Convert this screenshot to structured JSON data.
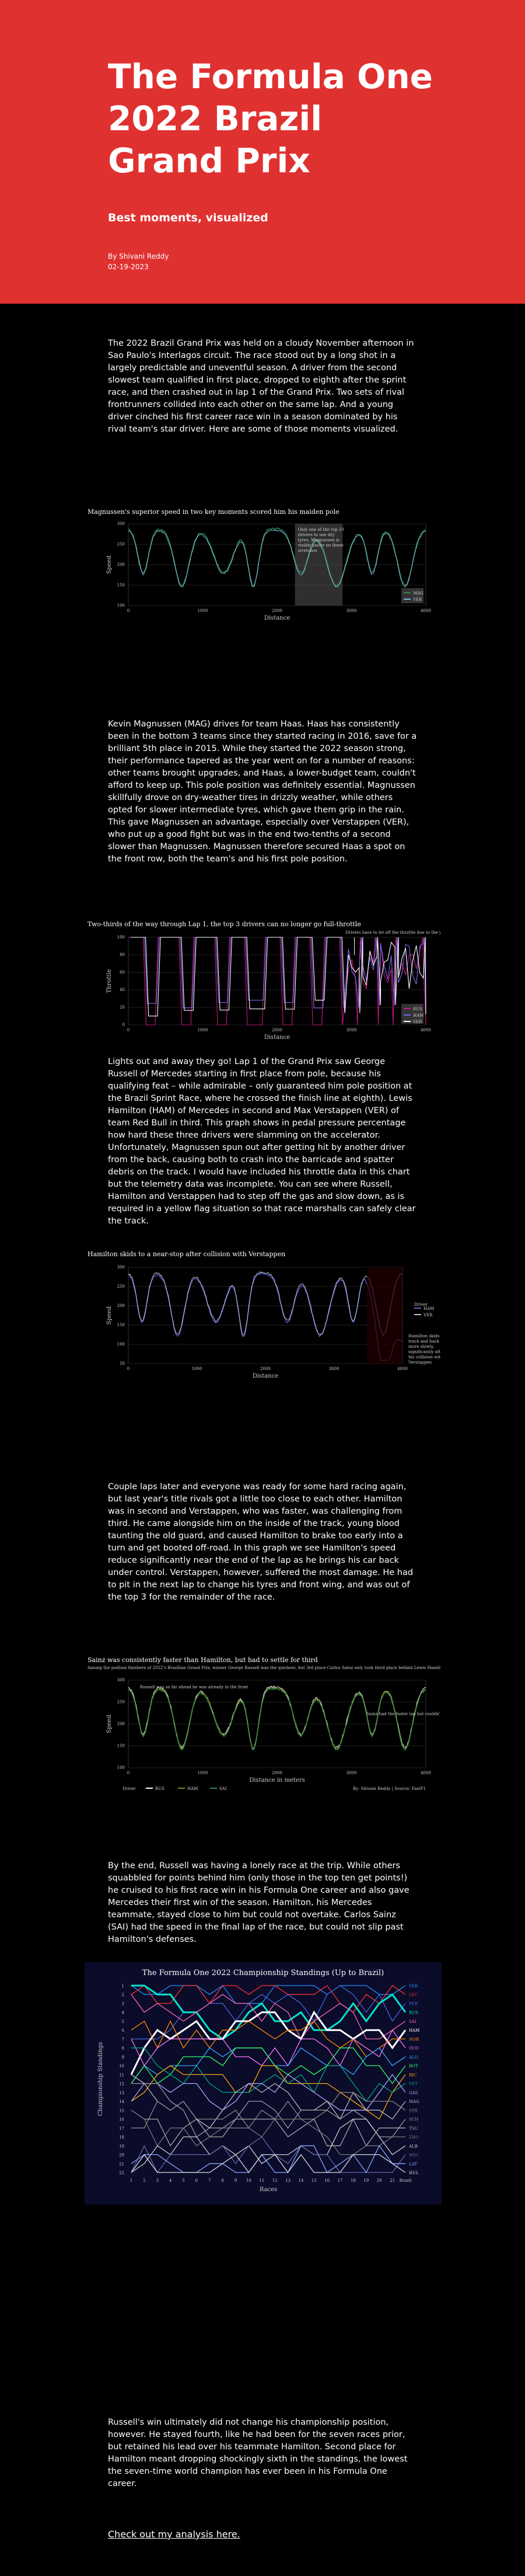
{
  "header": {
    "title": "The Formula One 2022 Brazil Grand Prix",
    "subtitle": "Best moments, visualized",
    "author": "By Shivani Reddy",
    "date": "02-19-2023"
  },
  "paragraphs": [
    "The 2022 Brazil Grand Prix was held on a cloudy November afternoon in Sao Paulo's Interlagos circuit. The race stood out by a long shot in a largely predictable and uneventful season. A driver from the second slowest team qualified in first place, dropped to eighth after the sprint race, and then crashed out in lap 1 of the Grand Prix. Two sets of rival frontrunners collided into each other on the same lap. And a young driver cinched his first career race win in a season dominated by his rival team's star driver. Here are some of those moments visualized.",
    "Kevin Magnussen (MAG) drives for team Haas. Haas has consistently been in the bottom 3 teams since they started racing in 2016, save for a brilliant 5th place in 2015. While they started the 2022 season strong, their performance tapered as the year went on for a number of reasons: other teams brought upgrades, and Haas, a lower-budget team, couldn't afford to keep up. This pole position was definitely essential. Magnussen skillfully drove on dry-weather tires in drizzly weather, while others opted for slower intermediate tyres, which gave them grip in the rain. This gave Magnussen an advantage, especially over Verstappen (VER), who put up a good fight but was in the end two-tenths of a second slower than Magnussen. Magnussen therefore secured Haas a spot on the front row, both the team's and his first pole position.",
    "Lights out and away they go! Lap 1 of the Grand Prix saw George Russell of Mercedes starting in first place from pole, because his qualifying feat – while admirable – only guaranteed him pole position at the Brazil Sprint Race, where he crossed the finish line at eighth). Lewis Hamilton (HAM) of Mercedes in second and Max Verstappen (VER) of team Red Bull in third. This graph shows in pedal pressure percentage how hard these three drivers were slamming on the accelerator. Unfortunately, Magnussen spun out after getting hit by another driver from the back, causing both to crash into the barricade and spatter debris on the track. I would have included his throttle data in this chart but the telemetry data was incomplete. You can see where Russell, Hamilton and Verstappen had to step off the gas and slow down, as is required in a yellow flag situation so that race marshalls can safely clear the track.",
    "Couple laps later and everyone was ready for some hard racing again, but last year's title rivals got a little too close to each other. Hamilton was in second and Verstappen, who was faster, was challenging from third. He came alongside him on the inside of the track, young blood taunting the old guard, and caused Hamilton to brake too early into a turn and get booted off-road. In this graph we see Hamilton's speed reduce significantly near the end of the lap as he brings his car back under control. Verstappen, however, suffered the most damage. He had to pit in the next lap to change his tyres and front wing, and was out of the top 3 for the remainder of the race.",
    "By the end, Russell was having a lonely race at the trip. While others squabbled for points behind him (only those in the top ten get points!) he cruised to his first race win in his Formula One career and also gave Mercedes their first win of the season. Hamilton, his Mercedes teammate, stayed close to him but could not overtake. Carlos Sainz (SAI) had the speed in the final lap of the race, but could not slip past Hamilton's defenses.",
    "Russell's win ultimately did not change his championship position, however. He stayed fourth, like he had been for the seven races prior, but retained his lead over his teammate Hamilton. Second place for Hamilton meant dropping shockingly sixth in the standings, the lowest the seven-time world champion has ever been in his Formula One career."
  ],
  "link_text": "Check out my analysis here.",
  "charts": {
    "speed": {
      "title": "Magnussen's superior speed in two key moments scored him his maiden pole",
      "ylabel": "Speed",
      "xlabel": "Distance",
      "yticks": [
        "300",
        "250",
        "200",
        "150",
        "100"
      ],
      "xticks": [
        "0",
        "1000",
        "2000",
        "3000",
        "4000"
      ],
      "annotation": "Only one of the top 10 drivers to use dry tyres, Magnussen is visibly faster on these stretches",
      "legend": [
        "MAG",
        "VER"
      ],
      "colors": [
        "#2e8b57",
        "#7fb5e0"
      ]
    },
    "throttle": {
      "title": "Two-thirds of the way through Lap 1, the top 3 drivers can no longer go full-throttle",
      "ylabel": "Throttle",
      "xlabel": "Distance",
      "yticks": [
        "100",
        "80",
        "60",
        "40",
        "20",
        "0"
      ],
      "xticks": [
        "0",
        "1000",
        "2000",
        "3000",
        "4000"
      ],
      "annotation": "Drivers have to let off the throttle due to the yellow flag and crash",
      "legend": [
        "RUS",
        "HAM",
        "VER"
      ],
      "colors": [
        "#c71585",
        "#7b68ee",
        "#ffffff"
      ]
    },
    "collision": {
      "title": "Hamilton skids to a near-stop after collision with Verstappen",
      "ylabel": "Speed",
      "xlabel": "Distance",
      "yticks": [
        "300",
        "250",
        "200",
        "150",
        "100",
        "50"
      ],
      "xticks": [
        "0",
        "1000",
        "2000",
        "3000",
        "4000"
      ],
      "annotation": "Hamilton skids off track and back on more slowly, significantly after his collision with Verstappen",
      "legend_title": "Driver",
      "legend": [
        "HAM",
        "VER"
      ],
      "colors": [
        "#6a5acd",
        "#b0c4de"
      ]
    },
    "final_lap": {
      "title": "Sainz was consistently faster than Hamilton, but had to settle for third",
      "subtitle": "Among the podium finishers of 2022's Brazilian Grand Prix, winner George Russell was the quickest, but 3rd place Carlos Sainz only took third place behind Lewis Hamilton.",
      "ylabel": "Speed",
      "xlabel": "Distance in meters",
      "yticks": [
        "300",
        "250",
        "200",
        "150",
        "100"
      ],
      "xticks": [
        "0",
        "1000",
        "2000",
        "3000",
        "4000"
      ],
      "annotation_left": "Russell was so far ahead he was already in the front",
      "annotation_right": "Sainz had the faster lap but couldn't overtake Hamilton",
      "legend_title": "Driver",
      "legend": [
        "RUS",
        "HAM",
        "SAI"
      ],
      "source": "By: Shivani Reddy | Source: FastF1",
      "colors": [
        "#ffffff",
        "#6b8e23",
        "#2e8b57"
      ]
    },
    "standings": {
      "title": "The Formula One 2022 Championship Standings (Up to Brazil)",
      "ylabel": "Championship Standings",
      "xlabel": "Races",
      "positions": [
        1,
        2,
        3,
        4,
        5,
        6,
        7,
        8,
        9,
        10,
        11,
        12,
        13,
        14,
        15,
        16,
        17,
        18,
        19,
        20,
        21,
        22
      ],
      "races": [
        "1",
        "2",
        "3",
        "4",
        "5",
        "6",
        "7",
        "8",
        "9",
        "10",
        "11",
        "12",
        "13",
        "14",
        "15",
        "16",
        "17",
        "18",
        "19",
        "20",
        "21",
        "Brazil"
      ],
      "drivers": [
        "VER",
        "LEC",
        "PER",
        "RUS",
        "SAI",
        "HAM",
        "NOR",
        "OCO",
        "ALO",
        "BOT",
        "RIC",
        "VET",
        "GAS",
        "MAG",
        "STR",
        "SCH",
        "TSU",
        "ZHO",
        "ALB",
        "MSC",
        "LAT",
        "HUL"
      ],
      "colors": [
        "#1e90ff",
        "#ff3333",
        "#4169e1",
        "#00e5cc",
        "#ff69b4",
        "#ffffff",
        "#ff8c00",
        "#ff77ff",
        "#33aaff",
        "#33ff66",
        "#ffaa00",
        "#00aa88",
        "#aaaaff",
        "#bbbbbb",
        "#888888",
        "#999999",
        "#aaaaaa",
        "#777777",
        "#cccccc",
        "#6666aa",
        "#88aaff",
        "#dddddd"
      ]
    }
  }
}
